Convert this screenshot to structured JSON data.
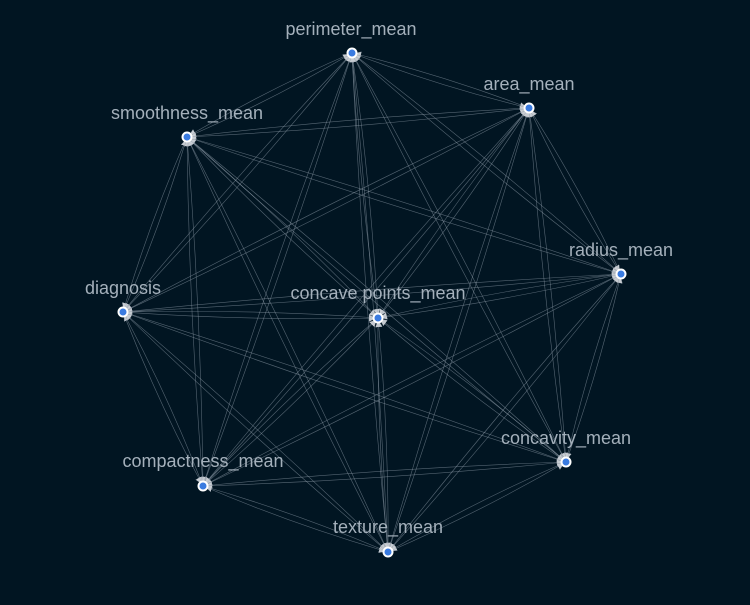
{
  "graph": {
    "colors": {
      "background": "#011522",
      "edge": "#9ba7b4",
      "node_fill": "#3a7be0",
      "node_stroke": "#ffffff",
      "label": "#a4b0bb",
      "arrow": "#c7ccd2"
    },
    "nodes": [
      {
        "id": "perimeter_mean",
        "label": "perimeter_mean"
      },
      {
        "id": "area_mean",
        "label": "area_mean"
      },
      {
        "id": "smoothness_mean",
        "label": "smoothness_mean"
      },
      {
        "id": "radius_mean",
        "label": "radius_mean"
      },
      {
        "id": "diagnosis",
        "label": "diagnosis"
      },
      {
        "id": "concave_points_mean",
        "label": "concave points_mean"
      },
      {
        "id": "concavity_mean",
        "label": "concavity_mean"
      },
      {
        "id": "compactness_mean",
        "label": "compactness_mean"
      },
      {
        "id": "texture_mean",
        "label": "texture_mean"
      }
    ],
    "edges": [
      [
        "perimeter_mean",
        "area_mean"
      ],
      [
        "perimeter_mean",
        "smoothness_mean"
      ],
      [
        "perimeter_mean",
        "radius_mean"
      ],
      [
        "perimeter_mean",
        "diagnosis"
      ],
      [
        "perimeter_mean",
        "concave_points_mean"
      ],
      [
        "perimeter_mean",
        "concavity_mean"
      ],
      [
        "perimeter_mean",
        "compactness_mean"
      ],
      [
        "perimeter_mean",
        "texture_mean"
      ],
      [
        "area_mean",
        "smoothness_mean"
      ],
      [
        "area_mean",
        "radius_mean"
      ],
      [
        "area_mean",
        "diagnosis"
      ],
      [
        "area_mean",
        "concave_points_mean"
      ],
      [
        "area_mean",
        "concavity_mean"
      ],
      [
        "area_mean",
        "compactness_mean"
      ],
      [
        "area_mean",
        "texture_mean"
      ],
      [
        "smoothness_mean",
        "radius_mean"
      ],
      [
        "smoothness_mean",
        "diagnosis"
      ],
      [
        "smoothness_mean",
        "concave_points_mean"
      ],
      [
        "smoothness_mean",
        "concavity_mean"
      ],
      [
        "smoothness_mean",
        "compactness_mean"
      ],
      [
        "smoothness_mean",
        "texture_mean"
      ],
      [
        "radius_mean",
        "diagnosis"
      ],
      [
        "radius_mean",
        "concave_points_mean"
      ],
      [
        "radius_mean",
        "concavity_mean"
      ],
      [
        "radius_mean",
        "compactness_mean"
      ],
      [
        "radius_mean",
        "texture_mean"
      ],
      [
        "diagnosis",
        "concave_points_mean"
      ],
      [
        "diagnosis",
        "concavity_mean"
      ],
      [
        "diagnosis",
        "compactness_mean"
      ],
      [
        "diagnosis",
        "texture_mean"
      ],
      [
        "concave_points_mean",
        "concavity_mean"
      ],
      [
        "concave_points_mean",
        "compactness_mean"
      ],
      [
        "concave_points_mean",
        "texture_mean"
      ],
      [
        "concavity_mean",
        "compactness_mean"
      ],
      [
        "concavity_mean",
        "texture_mean"
      ],
      [
        "compactness_mean",
        "texture_mean"
      ]
    ]
  }
}
